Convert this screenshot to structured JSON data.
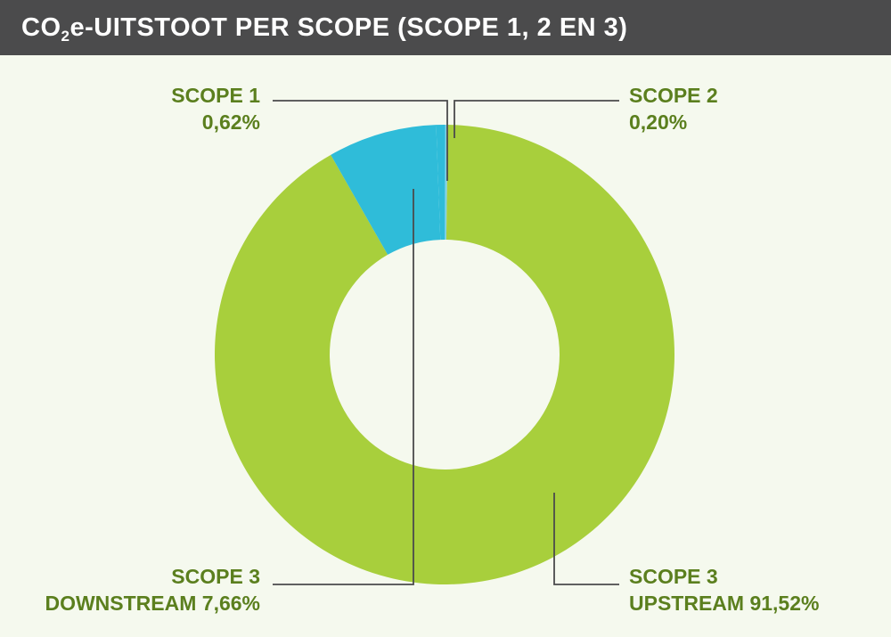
{
  "title": {
    "prefix": "CO",
    "subscript": "2",
    "suffix": "e-UITSTOOT PER SCOPE (SCOPE 1, 2 EN 3)"
  },
  "colors": {
    "scope_1": "#2fbcd9",
    "scope_2": "#7fd0e8",
    "scope_3_upstream": "#a8cf3c",
    "scope_3_downstream": "#2fbcd9",
    "label_text": "#5b7f1e",
    "leader_line": "#4b4b4c",
    "title_bg": "#4b4b4c",
    "background": "#f5f9ee"
  },
  "chart_data": {
    "type": "pie",
    "variant": "donut",
    "slices": [
      {
        "id": "scope_2",
        "name_line1": "SCOPE 2",
        "name_line2": "",
        "value": 0.2,
        "value_label": "0,20%"
      },
      {
        "id": "scope_3_upstream",
        "name_line1": "SCOPE 3",
        "name_line2": "UPSTREAM",
        "value": 91.52,
        "value_label": "91,52%"
      },
      {
        "id": "scope_3_downstream",
        "name_line1": "SCOPE 3",
        "name_line2": "DOWNSTREAM",
        "value": 7.66,
        "value_label": "7,66%"
      },
      {
        "id": "scope_1",
        "name_line1": "SCOPE 1",
        "name_line2": "",
        "value": 0.62,
        "value_label": "0,62%"
      }
    ]
  }
}
